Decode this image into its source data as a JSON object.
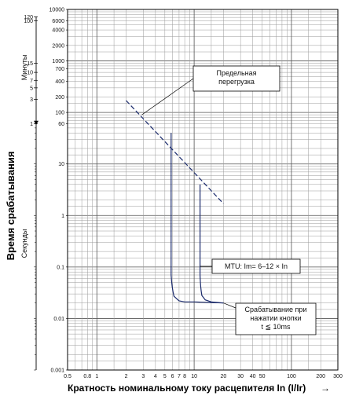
{
  "chart_data": {
    "type": "line",
    "title": "",
    "xlabel": "Кратность номинальному току расцепителя In (I/Ir)",
    "xlabel_arrow": "→",
    "ylabel": "Время срабатывания",
    "ylabel_seconds": "Секунды",
    "ylabel_minutes": "Минуты",
    "xscale": "log",
    "yscale": "log",
    "xlim": [
      0.5,
      300
    ],
    "ylim": [
      0.001,
      10000
    ],
    "grid": true,
    "x_ticks": [
      "0.5",
      "0.8",
      "1",
      "2",
      "3",
      "4",
      "5",
      "6",
      "7",
      "8",
      "10",
      "20",
      "30",
      "40",
      "50",
      "100",
      "200",
      "300"
    ],
    "y_ticks": [
      "10000",
      "6000",
      "4000",
      "2000",
      "1000",
      "700",
      "400",
      "200",
      "100",
      "60",
      "10",
      "1",
      "0.1",
      "0.01",
      "0.001"
    ],
    "minute_ticks": [
      "120",
      "100",
      "15",
      "10",
      "7",
      "5",
      "3",
      "1"
    ],
    "series": [
      {
        "style": "dashed",
        "x": [
          2,
          20
        ],
        "y": [
          170,
          1.7
        ]
      },
      {
        "style": "solid",
        "x": [
          5.8,
          5.8,
          5.9,
          6.2,
          7,
          8,
          10,
          20
        ],
        "y": [
          40,
          0.07,
          0.04,
          0.027,
          0.022,
          0.021,
          0.021,
          0.02
        ]
      },
      {
        "style": "solid",
        "x": [
          11.5,
          11.5,
          11.6,
          12,
          13,
          15,
          20
        ],
        "y": [
          4,
          0.07,
          0.04,
          0.028,
          0.023,
          0.021,
          0.02
        ]
      }
    ],
    "annotations": [
      {
        "lines": [
          "Предельная",
          "перегрузка"
        ]
      },
      {
        "lines": [
          "MTU: Im= 6–12 × In"
        ]
      },
      {
        "lines": [
          "Срабатывание при",
          "нажатии кнопки",
          "t ≦ 10ms"
        ]
      }
    ]
  }
}
